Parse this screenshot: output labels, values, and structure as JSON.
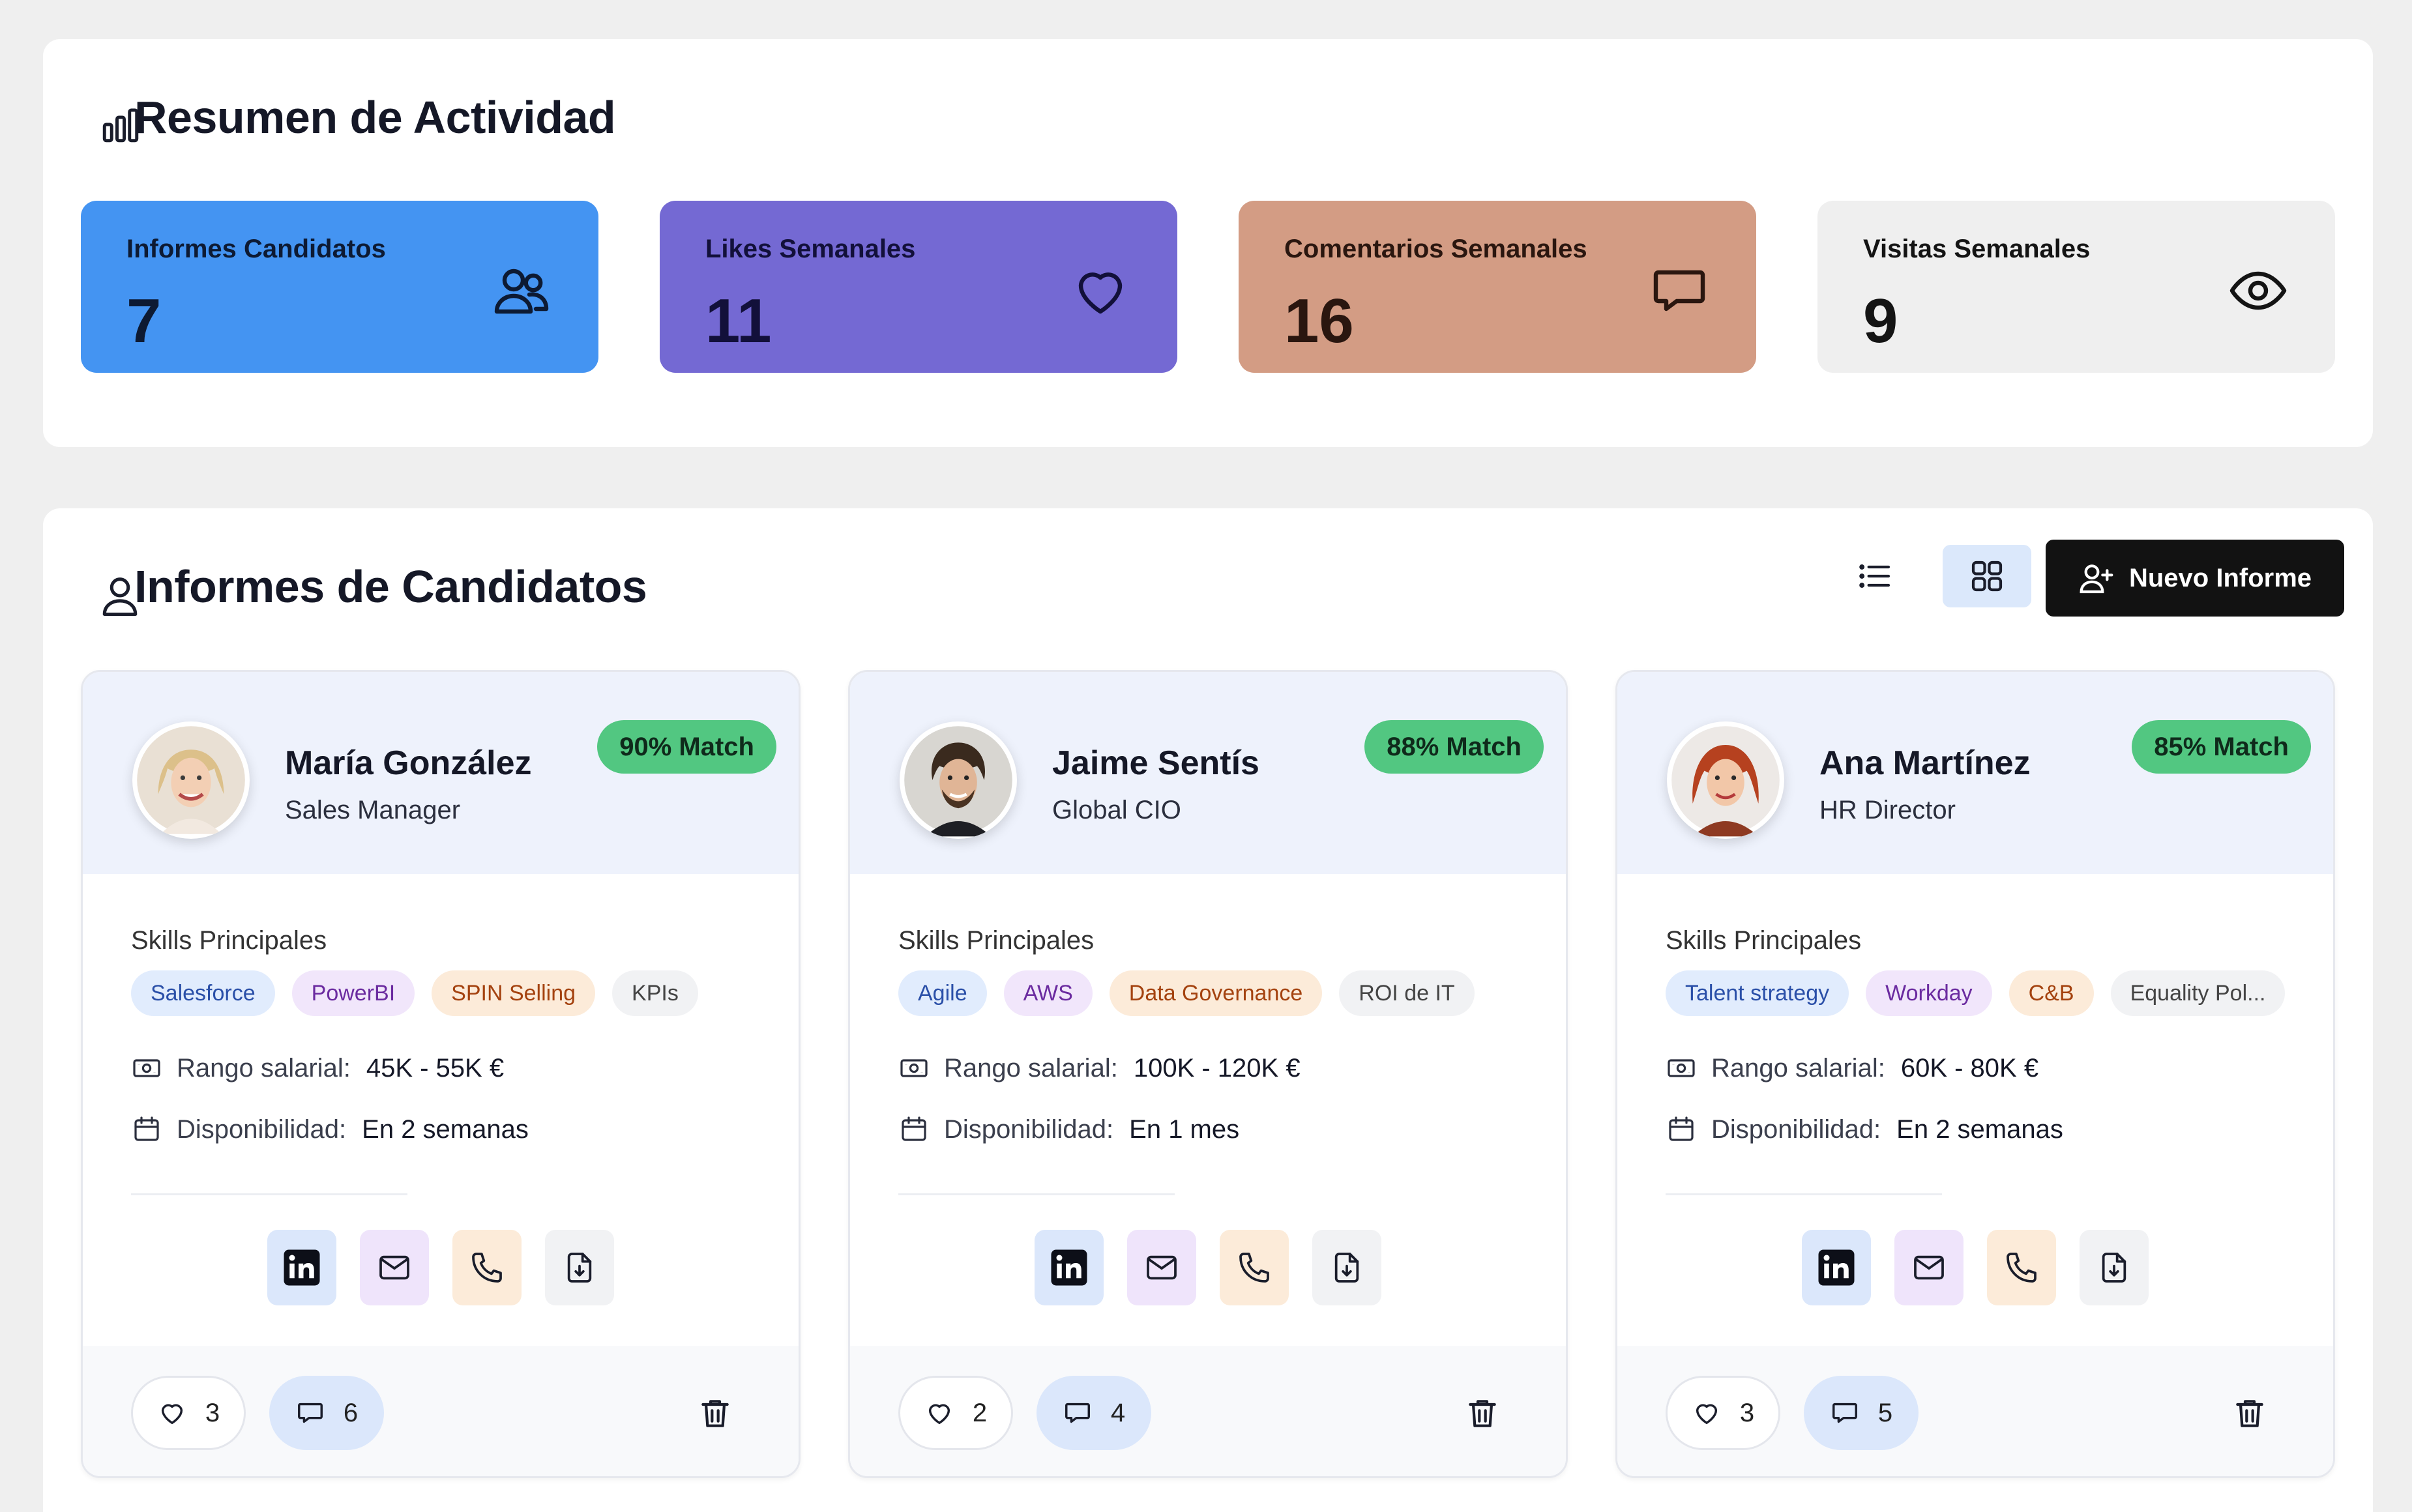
{
  "activity": {
    "title": "Resumen de Actividad",
    "stats": [
      {
        "label": "Informes Candidatos",
        "value": "7",
        "icon": "users-icon",
        "bg": "#4494f2",
        "fg": "#0d1a33"
      },
      {
        "label": "Likes Semanales",
        "value": "11",
        "icon": "heart-icon",
        "bg": "#7469d3",
        "fg": "#12103a"
      },
      {
        "label": "Comentarios Semanales",
        "value": "16",
        "icon": "message-icon",
        "bg": "#d39c84",
        "fg": "#2a160f"
      },
      {
        "label": "Visitas Semanales",
        "value": "9",
        "icon": "eye-icon",
        "bg": "#efefef",
        "fg": "#141414"
      }
    ]
  },
  "reports": {
    "title": "Informes de Candidatos",
    "new_button": "Nuevo Informe",
    "skills_title": "Skills Principales",
    "salary_label": "Rango salarial:",
    "availability_label": "Disponibilidad:",
    "candidates": [
      {
        "name": "María González",
        "role": "Sales Manager",
        "match": "90% Match",
        "skills": [
          "Salesforce",
          "PowerBI",
          "SPIN Selling",
          "KPIs"
        ],
        "salary": "45K - 55K €",
        "availability": "En 2 semanas",
        "likes": "3",
        "comments": "6"
      },
      {
        "name": "Jaime Sentís",
        "role": "Global CIO",
        "match": "88% Match",
        "skills": [
          "Agile",
          "AWS",
          "Data Governance",
          "ROI de IT"
        ],
        "salary": "100K - 120K €",
        "availability": "En 1 mes",
        "likes": "2",
        "comments": "4"
      },
      {
        "name": "Ana Martínez",
        "role": "HR Director",
        "match": "85% Match",
        "skills": [
          "Talent strategy",
          "Workday",
          "C&B",
          "Equality Pol..."
        ],
        "salary": "60K - 80K €",
        "availability": "En 2 semanas",
        "likes": "3",
        "comments": "5"
      }
    ]
  }
}
